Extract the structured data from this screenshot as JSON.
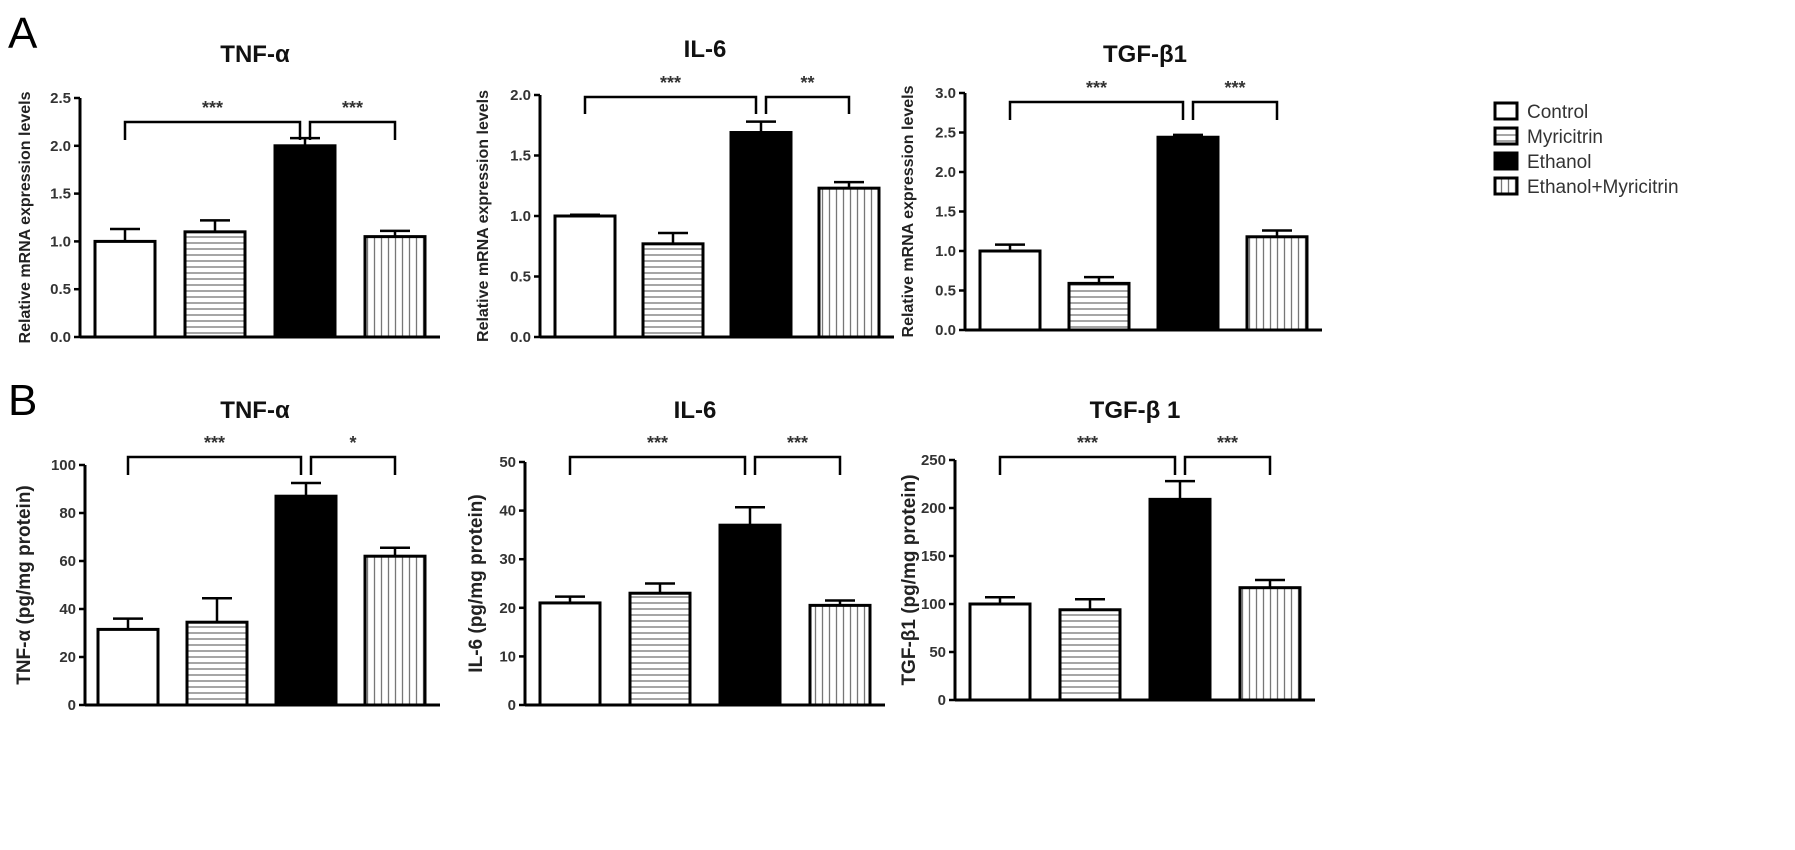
{
  "chart_data": [
    {
      "type": "bar",
      "panel": "A",
      "title": "TNF-α",
      "ylabel": "Relative mRNA expression levels",
      "ylim": [
        0,
        2.5
      ],
      "yticks": [
        "0.0",
        "0.5",
        "1.0",
        "1.5",
        "2.0",
        "2.5"
      ],
      "categories": [
        "Control",
        "Myricitrin",
        "Ethanol",
        "Ethanol+Myricitrin"
      ],
      "values": [
        1.0,
        1.1,
        2.0,
        1.05
      ],
      "errors": [
        0.13,
        0.12,
        0.08,
        0.06
      ],
      "significance": [
        {
          "from": "Control",
          "to": "Ethanol",
          "label": "***"
        },
        {
          "from": "Ethanol",
          "to": "Ethanol+Myricitrin",
          "label": "***"
        }
      ]
    },
    {
      "type": "bar",
      "panel": "",
      "title": "IL-6",
      "ylabel": "Relative mRNA expression levels",
      "ylim": [
        0,
        2.0
      ],
      "yticks": [
        "0.0",
        "0.5",
        "1.0",
        "1.5",
        "2.0"
      ],
      "categories": [
        "Control",
        "Myricitrin",
        "Ethanol",
        "Ethanol+Myricitrin"
      ],
      "values": [
        1.0,
        0.77,
        1.69,
        1.23
      ],
      "errors": [
        0.01,
        0.09,
        0.09,
        0.05
      ],
      "significance": [
        {
          "from": "Control",
          "to": "Ethanol",
          "label": "***"
        },
        {
          "from": "Ethanol",
          "to": "Ethanol+Myricitrin",
          "label": "**"
        }
      ]
    },
    {
      "type": "bar",
      "panel": "",
      "title": "TGF-β1",
      "ylabel": "Relative mRNA expression levels",
      "ylim": [
        0,
        3.0
      ],
      "yticks": [
        "0.0",
        "0.5",
        "1.0",
        "1.5",
        "2.0",
        "2.5",
        "3.0"
      ],
      "categories": [
        "Control",
        "Myricitrin",
        "Ethanol",
        "Ethanol+Myricitrin"
      ],
      "values": [
        1.0,
        0.59,
        2.44,
        1.18
      ],
      "errors": [
        0.08,
        0.08,
        0.03,
        0.08
      ],
      "significance": [
        {
          "from": "Control",
          "to": "Ethanol",
          "label": "***"
        },
        {
          "from": "Ethanol",
          "to": "Ethanol+Myricitrin",
          "label": "***"
        }
      ]
    },
    {
      "type": "bar",
      "panel": "B",
      "title": "TNF-α",
      "ylabel": "TNF-α (pg/mg protein)",
      "ylim": [
        0,
        100
      ],
      "yticks": [
        "0",
        "20",
        "40",
        "60",
        "80",
        "100"
      ],
      "categories": [
        "Control",
        "Myricitrin",
        "Ethanol",
        "Ethanol+Myricitrin"
      ],
      "values": [
        31.5,
        34.5,
        87,
        62
      ],
      "errors": [
        4.5,
        10,
        5.5,
        3.5
      ],
      "significance": [
        {
          "from": "Control",
          "to": "Ethanol",
          "label": "***"
        },
        {
          "from": "Ethanol",
          "to": "Ethanol+Myricitrin",
          "label": "*"
        }
      ]
    },
    {
      "type": "bar",
      "panel": "",
      "title": "IL-6",
      "ylabel": "IL-6 (pg/mg protein)",
      "ylim": [
        0,
        50
      ],
      "yticks": [
        "0",
        "10",
        "20",
        "30",
        "40",
        "50"
      ],
      "categories": [
        "Control",
        "Myricitrin",
        "Ethanol",
        "Ethanol+Myricitrin"
      ],
      "values": [
        21,
        23,
        37,
        20.5
      ],
      "errors": [
        1.3,
        2,
        3.7,
        1
      ],
      "significance": [
        {
          "from": "Control",
          "to": "Ethanol",
          "label": "***"
        },
        {
          "from": "Ethanol",
          "to": "Ethanol+Myricitrin",
          "label": "***"
        }
      ]
    },
    {
      "type": "bar",
      "panel": "",
      "title": "TGF-β 1",
      "ylabel": "TGF-β1 (pg/mg protein)",
      "ylim": [
        0,
        250
      ],
      "yticks": [
        "0",
        "50",
        "100",
        "150",
        "200",
        "250"
      ],
      "categories": [
        "Control",
        "Myricitrin",
        "Ethanol",
        "Ethanol+Myricitrin"
      ],
      "values": [
        100,
        94,
        209,
        117
      ],
      "errors": [
        7,
        11,
        19,
        8
      ],
      "significance": [
        {
          "from": "Control",
          "to": "Ethanol",
          "label": "***"
        },
        {
          "from": "Ethanol",
          "to": "Ethanol+Myricitrin",
          "label": "***"
        }
      ]
    }
  ],
  "legend": {
    "placement": "right",
    "items": [
      {
        "label": "Control",
        "fill": "white"
      },
      {
        "label": "Myricitrin",
        "fill": "horizontal-stripes"
      },
      {
        "label": "Ethanol",
        "fill": "black"
      },
      {
        "label": "Ethanol+Myricitrin",
        "fill": "vertical-stripes"
      }
    ]
  },
  "colors": {
    "bar_outline": "#000000",
    "stripe": "#777777",
    "ethanol": "#000000"
  }
}
